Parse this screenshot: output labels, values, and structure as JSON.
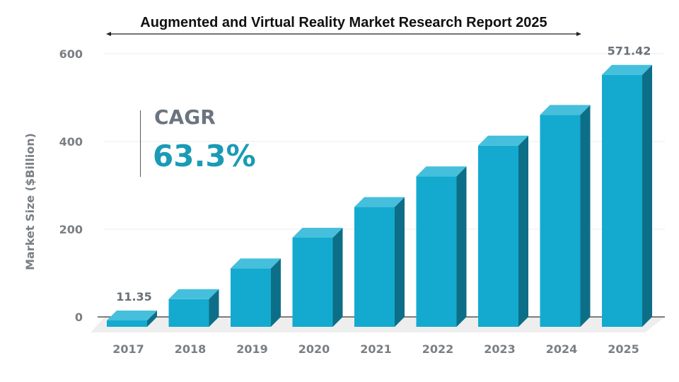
{
  "chart_data": {
    "type": "bar",
    "title": "Augmented and Virtual Reality Market Research Report 2025",
    "xlabel": "",
    "ylabel": "Market Size ($Billion)",
    "ylim": [
      0,
      600
    ],
    "yticks": [
      0,
      200,
      400,
      600
    ],
    "categories": [
      "2017",
      "2018",
      "2019",
      "2020",
      "2021",
      "2022",
      "2023",
      "2024",
      "2025"
    ],
    "values": [
      11.35,
      60,
      130,
      200,
      270,
      340,
      410,
      480,
      571.42
    ],
    "data_labels": [
      "11.35",
      "",
      "",
      "",
      "",
      "",
      "",
      "",
      "571.42"
    ],
    "grid": true,
    "colors": {
      "front": "#14aacf",
      "side": "#0d6f87",
      "top": "#45bfdc",
      "axis": "#555555",
      "grid": "#ececec",
      "floor": "#eeeeee"
    }
  },
  "cagr": {
    "label": "CAGR",
    "value": "63.3%"
  }
}
